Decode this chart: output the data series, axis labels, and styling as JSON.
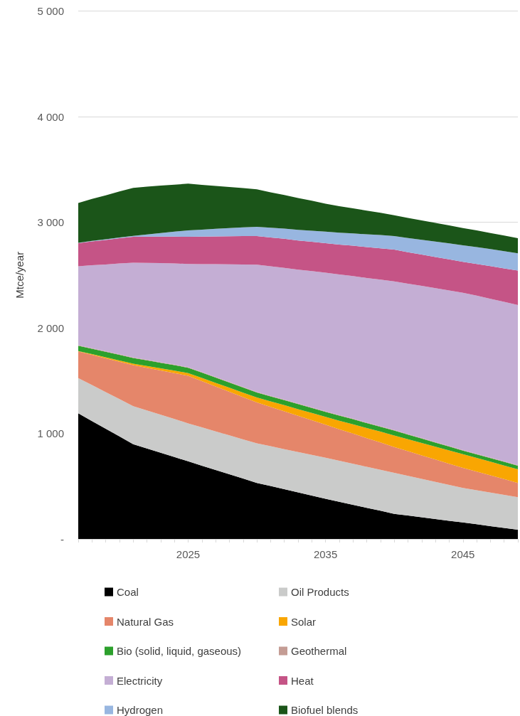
{
  "chart_data": {
    "type": "area",
    "stacked": true,
    "ylabel": "Mtce/year",
    "categories": [
      null,
      null,
      null,
      null,
      null,
      null,
      null,
      null,
      "2025",
      null,
      null,
      null,
      null,
      null,
      null,
      null,
      null,
      null,
      "2035",
      null,
      null,
      null,
      null,
      null,
      null,
      null,
      null,
      null,
      "2045",
      null,
      null,
      null,
      null
    ],
    "ylim": [
      0,
      5000
    ],
    "yticks": [
      {
        "value": 0,
        "label": "-"
      },
      {
        "value": 1000,
        "label": "1 000"
      },
      {
        "value": 2000,
        "label": "2 000"
      },
      {
        "value": 3000,
        "label": "3 000"
      },
      {
        "value": 4000,
        "label": "4 000"
      },
      {
        "value": 5000,
        "label": "5 000"
      }
    ],
    "grid": "y",
    "legend": "bottom",
    "series": [
      {
        "name": "Coal",
        "color": "#000000",
        "values": [
          1190,
          1117,
          1044,
          971,
          898,
          857,
          817,
          776,
          735,
          694,
          653,
          613,
          572,
          531,
          501,
          471,
          441,
          411,
          381,
          352,
          324,
          295,
          267,
          238,
          222,
          205,
          189,
          172,
          156,
          139,
          122,
          105,
          88
        ]
      },
      {
        "name": "Oil Products",
        "color": "#cacbca",
        "values": [
          334,
          341,
          347,
          354,
          360,
          360,
          360,
          360,
          360,
          363,
          366,
          368,
          371,
          374,
          377,
          380,
          382,
          385,
          388,
          388,
          388,
          388,
          388,
          388,
          376,
          364,
          351,
          339,
          327,
          322,
          317,
          312,
          307
        ]
      },
      {
        "name": "Natural Gas",
        "color": "#e5866a",
        "values": [
          252,
          286,
          320,
          354,
          388,
          404,
          419,
          435,
          450,
          438,
          425,
          413,
          400,
          388,
          373,
          358,
          343,
          328,
          313,
          299,
          286,
          272,
          259,
          245,
          234,
          223,
          212,
          201,
          190,
          177,
          163,
          150,
          136
        ]
      },
      {
        "name": "Solar",
        "color": "#f9a602",
        "values": [
          4,
          7,
          9,
          12,
          14,
          17,
          20,
          23,
          26,
          30,
          34,
          39,
          43,
          47,
          52,
          58,
          63,
          69,
          74,
          81,
          88,
          95,
          102,
          109,
          113,
          117,
          122,
          126,
          130,
          130,
          130,
          129,
          129
        ]
      },
      {
        "name": "Bio (solid, liquid, gaseous)",
        "color": "#2ca02c",
        "values": [
          50,
          51,
          52,
          53,
          54,
          54,
          53,
          52,
          51,
          50,
          50,
          49,
          49,
          48,
          48,
          48,
          48,
          48,
          48,
          48,
          48,
          47,
          47,
          47,
          44,
          42,
          39,
          37,
          34,
          34,
          34,
          34,
          34
        ]
      },
      {
        "name": "Geothermal",
        "color": "#c49c94",
        "values": [
          5,
          5,
          5,
          5,
          5,
          5,
          5,
          5,
          5,
          5,
          5,
          5,
          5,
          5,
          5,
          5,
          5,
          5,
          5,
          5,
          5,
          5,
          5,
          5,
          5,
          5,
          5,
          5,
          5,
          5,
          5,
          5,
          5
        ]
      },
      {
        "name": "Electricity",
        "color": "#c4aed4",
        "values": [
          748,
          786,
          823,
          861,
          898,
          918,
          938,
          958,
          978,
          1023,
          1069,
          1114,
          1159,
          1204,
          1226,
          1248,
          1269,
          1291,
          1313,
          1332,
          1351,
          1370,
          1389,
          1408,
          1424,
          1441,
          1457,
          1474,
          1490,
          1497,
          1504,
          1510,
          1517
        ]
      },
      {
        "name": "Heat",
        "color": "#c55486",
        "values": [
          218,
          225,
          232,
          238,
          245,
          248,
          251,
          254,
          257,
          260,
          263,
          266,
          269,
          272,
          273,
          275,
          276,
          278,
          279,
          283,
          287,
          292,
          296,
          300,
          298,
          297,
          295,
          294,
          292,
          301,
          309,
          318,
          326
        ]
      },
      {
        "name": "Hydrogen",
        "color": "#98b6e0",
        "values": [
          4,
          5,
          6,
          7,
          8,
          21,
          35,
          48,
          61,
          66,
          72,
          77,
          83,
          88,
          92,
          96,
          101,
          105,
          109,
          113,
          117,
          121,
          125,
          129,
          135,
          140,
          146,
          151,
          157,
          159,
          161,
          162,
          164
        ]
      },
      {
        "name": "Biofuel blends",
        "color": "#1b5519",
        "values": [
          377,
          397,
          416,
          436,
          455,
          452,
          448,
          445,
          442,
          424,
          407,
          389,
          372,
          354,
          336,
          318,
          301,
          283,
          265,
          251,
          238,
          224,
          211,
          197,
          190,
          183,
          177,
          170,
          163,
          158,
          153,
          148,
          143
        ]
      }
    ]
  }
}
